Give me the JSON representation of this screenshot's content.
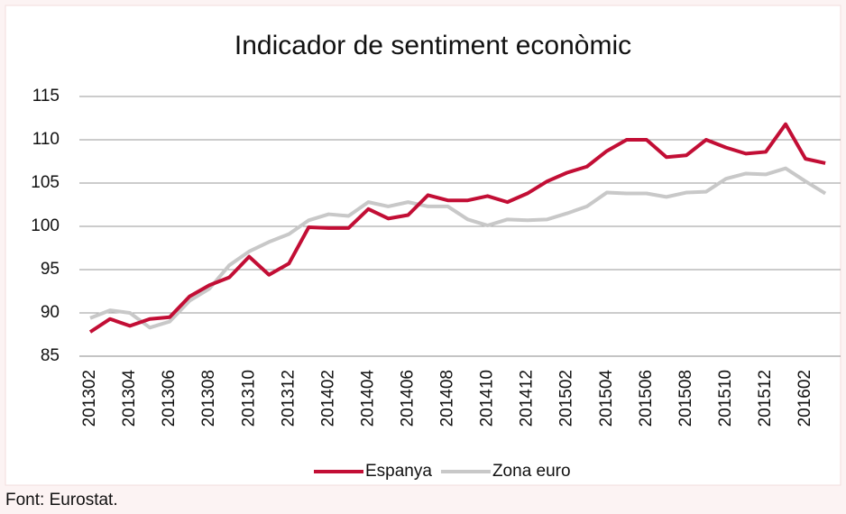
{
  "chart_data": {
    "type": "line",
    "title": "Indicador de sentiment econòmic",
    "source": "Font: Eurostat.",
    "categories": [
      "201302",
      null,
      "201304",
      null,
      "201306",
      null,
      "201308",
      null,
      "201310",
      null,
      "201312",
      null,
      "201402",
      null,
      "201404",
      null,
      "201406",
      null,
      "201408",
      null,
      "201410",
      null,
      "201412",
      null,
      "201502",
      null,
      "201504",
      null,
      "201506",
      null,
      "201508",
      null,
      "201510",
      null,
      "201512",
      null,
      "201602",
      null
    ],
    "series": [
      {
        "name": "Espanya",
        "color": "#c20e35",
        "values": [
          87.8,
          89.3,
          88.5,
          89.3,
          89.5,
          91.9,
          93.2,
          94.1,
          96.5,
          94.4,
          95.7,
          99.9,
          99.8,
          99.8,
          102.0,
          100.9,
          101.3,
          103.6,
          103.0,
          103.0,
          103.5,
          102.8,
          103.8,
          105.2,
          106.2,
          106.9,
          108.7,
          110.0,
          110.0,
          108.0,
          108.2,
          110.0,
          109.1,
          108.4,
          108.6,
          111.8,
          107.8,
          107.3
        ]
      },
      {
        "name": "Zona euro",
        "color": "#c8c8c8",
        "values": [
          89.4,
          90.3,
          90.0,
          88.3,
          89.0,
          91.4,
          92.8,
          95.5,
          97.1,
          98.2,
          99.1,
          100.7,
          101.4,
          101.2,
          102.8,
          102.3,
          102.8,
          102.3,
          102.3,
          100.8,
          100.1,
          100.8,
          100.7,
          100.8,
          101.5,
          102.3,
          103.9,
          103.8,
          103.8,
          103.4,
          103.9,
          104.0,
          105.5,
          106.1,
          106.0,
          106.7,
          105.2,
          103.8
        ]
      }
    ],
    "ylim": [
      85,
      115
    ],
    "yticks": [
      85,
      90,
      95,
      100,
      105,
      110,
      115
    ],
    "grid": true,
    "legend": "bottom"
  }
}
